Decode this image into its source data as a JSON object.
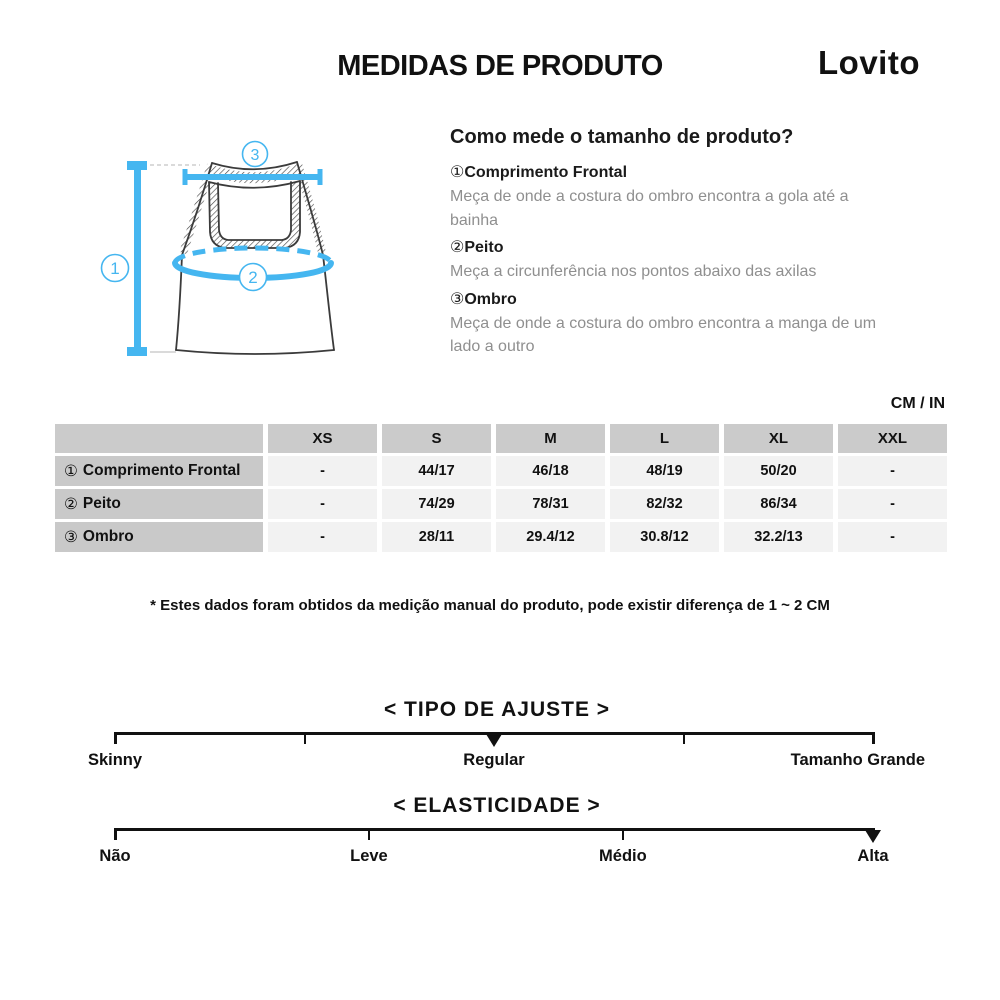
{
  "header": {
    "title": "MEDIDAS DE PRODUTO",
    "brand": "Lovito"
  },
  "diagram": {
    "accent_color": "#45b6f0",
    "labels": {
      "m1": "1",
      "m2": "2",
      "m3": "3"
    }
  },
  "how_to": {
    "title": "Como mede o tamanho de produto?",
    "items": [
      {
        "num": "①",
        "label": "Comprimento Frontal",
        "desc": "Meça de onde a costura do ombro encontra a gola até a bainha"
      },
      {
        "num": "②",
        "label": "Peito",
        "desc": "Meça a circunferência nos pontos abaixo das axilas"
      },
      {
        "num": "③",
        "label": "Ombro",
        "desc": "Meça de onde a costura do ombro encontra a manga de um lado a outro"
      }
    ]
  },
  "units_label": "CM / IN",
  "size_table": {
    "columns": [
      "XS",
      "S",
      "M",
      "L",
      "XL",
      "XXL"
    ],
    "rows": [
      {
        "num": "①",
        "label": "Comprimento Frontal",
        "values": [
          "-",
          "44/17",
          "46/18",
          "48/19",
          "50/20",
          "-"
        ]
      },
      {
        "num": "②",
        "label": "Peito",
        "values": [
          "-",
          "74/29",
          "78/31",
          "82/32",
          "86/34",
          "-"
        ]
      },
      {
        "num": "③",
        "label": "Ombro",
        "values": [
          "-",
          "28/11",
          "29.4/12",
          "30.8/12",
          "32.2/13",
          "-"
        ]
      }
    ]
  },
  "footnote": "* Estes dados foram obtidos da medição manual do produto, pode existir diferença de 1 ~ 2 CM",
  "scales": [
    {
      "id": "fit",
      "title": "< TIPO DE AJUSTE >",
      "ticks_pct": [
        0,
        25,
        75,
        100
      ],
      "marker_pct": 50,
      "marker_value": "Regular",
      "labels": [
        {
          "text": "Skinny",
          "pct": 0
        },
        {
          "text": "Regular",
          "pct": 50
        },
        {
          "text": "Tamanho Grande",
          "pct": 98
        }
      ]
    },
    {
      "id": "elasticity",
      "title": "< ELASTICIDADE >",
      "ticks_pct": [
        0,
        33.5,
        67,
        100
      ],
      "marker_pct": 100,
      "marker_value": "Alta",
      "labels": [
        {
          "text": "Não",
          "pct": 0
        },
        {
          "text": "Leve",
          "pct": 33.5
        },
        {
          "text": "Médio",
          "pct": 67
        },
        {
          "text": "Alta",
          "pct": 100
        }
      ]
    }
  ]
}
